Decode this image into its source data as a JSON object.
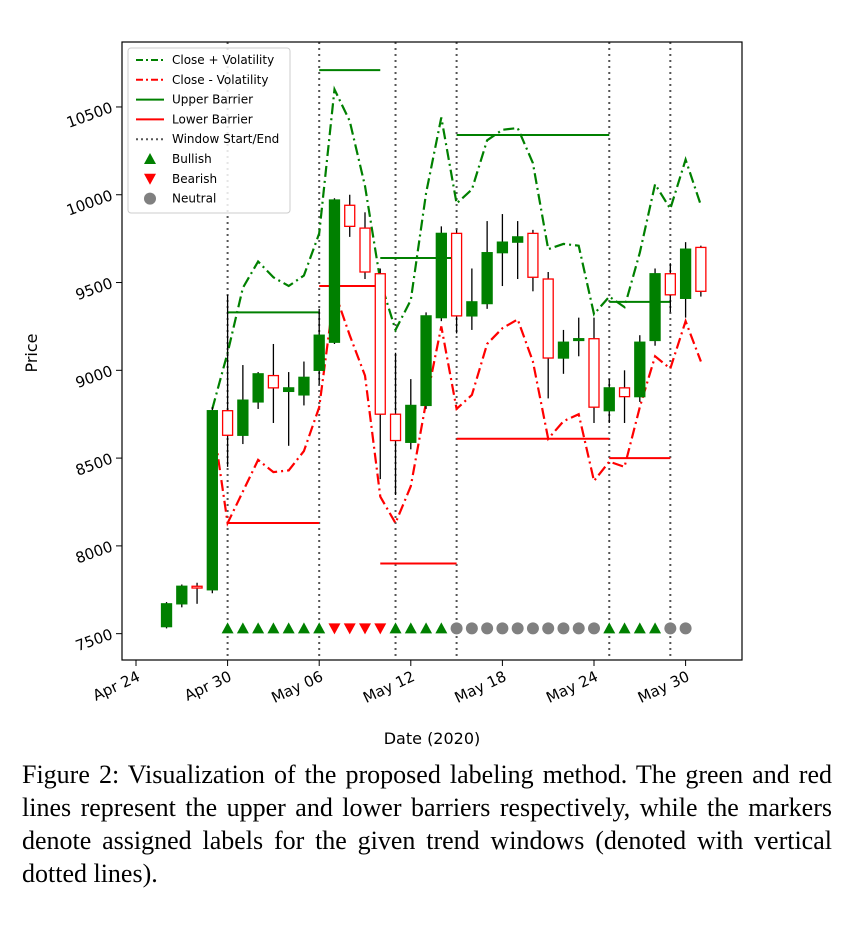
{
  "chart_data": {
    "type": "candlestick",
    "xlabel": "Date (2020)",
    "ylabel": "Price",
    "x_ticks": [
      "Apr 24",
      "Apr 30",
      "May 06",
      "May 12",
      "May 18",
      "May 24",
      "May 30"
    ],
    "y_ticks": [
      7500,
      8000,
      8500,
      9000,
      9500,
      10000,
      10500
    ],
    "ylim": [
      7350,
      10870
    ],
    "legend": {
      "placement": "top-left",
      "entries": [
        {
          "label": "Close + Volatility",
          "style": "dashdot",
          "color": "#008000"
        },
        {
          "label": "Close - Volatility",
          "style": "dashdot",
          "color": "#ff0000"
        },
        {
          "label": "Upper Barrier",
          "style": "solid",
          "color": "#008000"
        },
        {
          "label": "Lower Barrier",
          "style": "solid",
          "color": "#ff0000"
        },
        {
          "label": "Window Start/End",
          "style": "dotted",
          "color": "#555555"
        },
        {
          "label": "Bullish",
          "marker": "triangle-up",
          "color": "#008000"
        },
        {
          "label": "Bearish",
          "marker": "triangle-down",
          "color": "#ff0000"
        },
        {
          "label": "Neutral",
          "marker": "circle",
          "color": "#808080"
        }
      ]
    },
    "candles": [
      {
        "date": "2020-04-26",
        "open": 7540,
        "close": 7670,
        "high": 7680,
        "low": 7530
      },
      {
        "date": "2020-04-27",
        "open": 7670,
        "close": 7770,
        "high": 7780,
        "low": 7650
      },
      {
        "date": "2020-04-28",
        "open": 7770,
        "close": 7760,
        "high": 7790,
        "low": 7670
      },
      {
        "date": "2020-04-29",
        "open": 7750,
        "close": 8770,
        "high": 8790,
        "low": 7730
      },
      {
        "date": "2020-04-30",
        "open": 8770,
        "close": 8630,
        "high": 9430,
        "low": 8450
      },
      {
        "date": "2020-05-01",
        "open": 8630,
        "close": 8830,
        "high": 9030,
        "low": 8580
      },
      {
        "date": "2020-05-02",
        "open": 8820,
        "close": 8980,
        "high": 8990,
        "low": 8780
      },
      {
        "date": "2020-05-03",
        "open": 8970,
        "close": 8900,
        "high": 9150,
        "low": 8700
      },
      {
        "date": "2020-05-04",
        "open": 8880,
        "close": 8900,
        "high": 8990,
        "low": 8570
      },
      {
        "date": "2020-05-05",
        "open": 8860,
        "close": 8960,
        "high": 9050,
        "low": 8800
      },
      {
        "date": "2020-05-06",
        "open": 9000,
        "close": 9200,
        "high": 9350,
        "low": 8920
      },
      {
        "date": "2020-05-07",
        "open": 9160,
        "close": 9970,
        "high": 9980,
        "low": 9150
      },
      {
        "date": "2020-05-08",
        "open": 9940,
        "close": 9820,
        "high": 10000,
        "low": 9760
      },
      {
        "date": "2020-05-09",
        "open": 9810,
        "close": 9560,
        "high": 9900,
        "low": 9520
      },
      {
        "date": "2020-05-10",
        "open": 9550,
        "close": 8750,
        "high": 9580,
        "low": 8380
      },
      {
        "date": "2020-05-11",
        "open": 8750,
        "close": 8600,
        "high": 9100,
        "low": 8290
      },
      {
        "date": "2020-05-12",
        "open": 8590,
        "close": 8800,
        "high": 8950,
        "low": 8550
      },
      {
        "date": "2020-05-13",
        "open": 8800,
        "close": 9310,
        "high": 9330,
        "low": 8780
      },
      {
        "date": "2020-05-14",
        "open": 9300,
        "close": 9780,
        "high": 9820,
        "low": 9280
      },
      {
        "date": "2020-05-15",
        "open": 9780,
        "close": 9310,
        "high": 9800,
        "low": 9210
      },
      {
        "date": "2020-05-16",
        "open": 9310,
        "close": 9390,
        "high": 9580,
        "low": 9230
      },
      {
        "date": "2020-05-17",
        "open": 9380,
        "close": 9670,
        "high": 9850,
        "low": 9350
      },
      {
        "date": "2020-05-18",
        "open": 9670,
        "close": 9730,
        "high": 9890,
        "low": 9480
      },
      {
        "date": "2020-05-19",
        "open": 9730,
        "close": 9760,
        "high": 9850,
        "low": 9520
      },
      {
        "date": "2020-05-20",
        "open": 9780,
        "close": 9530,
        "high": 9800,
        "low": 9450
      },
      {
        "date": "2020-05-21",
        "open": 9520,
        "close": 9070,
        "high": 9560,
        "low": 8840
      },
      {
        "date": "2020-05-22",
        "open": 9070,
        "close": 9160,
        "high": 9230,
        "low": 8980
      },
      {
        "date": "2020-05-23",
        "open": 9170,
        "close": 9180,
        "high": 9300,
        "low": 9080
      },
      {
        "date": "2020-05-24",
        "open": 9180,
        "close": 8790,
        "high": 9300,
        "low": 8700
      },
      {
        "date": "2020-05-25",
        "open": 8770,
        "close": 8900,
        "high": 8950,
        "low": 8700
      },
      {
        "date": "2020-05-26",
        "open": 8900,
        "close": 8850,
        "high": 9000,
        "low": 8700
      },
      {
        "date": "2020-05-27",
        "open": 8850,
        "close": 9160,
        "high": 9200,
        "low": 8820
      },
      {
        "date": "2020-05-28",
        "open": 9170,
        "close": 9550,
        "high": 9580,
        "low": 9140
      },
      {
        "date": "2020-05-29",
        "open": 9550,
        "close": 9430,
        "high": 9610,
        "low": 9330
      },
      {
        "date": "2020-05-30",
        "open": 9410,
        "close": 9690,
        "high": 9730,
        "low": 9300
      },
      {
        "date": "2020-05-31",
        "open": 9700,
        "close": 9450,
        "high": 9710,
        "low": 9420
      }
    ],
    "close_plus_volatility": [
      [
        "2020-04-29",
        8780
      ],
      [
        "2020-04-30",
        9100
      ],
      [
        "2020-05-01",
        9470
      ],
      [
        "2020-05-02",
        9620
      ],
      [
        "2020-05-03",
        9530
      ],
      [
        "2020-05-04",
        9480
      ],
      [
        "2020-05-05",
        9540
      ],
      [
        "2020-05-06",
        9780
      ],
      [
        "2020-05-07",
        10600
      ],
      [
        "2020-05-08",
        10420
      ],
      [
        "2020-05-09",
        10050
      ],
      [
        "2020-05-10",
        9510
      ],
      [
        "2020-05-11",
        9230
      ],
      [
        "2020-05-12",
        9400
      ],
      [
        "2020-05-13",
        10010
      ],
      [
        "2020-05-14",
        10440
      ],
      [
        "2020-05-15",
        9950
      ],
      [
        "2020-05-16",
        10030
      ],
      [
        "2020-05-17",
        10310
      ],
      [
        "2020-05-18",
        10370
      ],
      [
        "2020-05-19",
        10380
      ],
      [
        "2020-05-20",
        10180
      ],
      [
        "2020-05-21",
        9690
      ],
      [
        "2020-05-22",
        9720
      ],
      [
        "2020-05-23",
        9710
      ],
      [
        "2020-05-24",
        9320
      ],
      [
        "2020-05-25",
        9420
      ],
      [
        "2020-05-26",
        9360
      ],
      [
        "2020-05-27",
        9670
      ],
      [
        "2020-05-28",
        10060
      ],
      [
        "2020-05-29",
        9920
      ],
      [
        "2020-05-30",
        10200
      ],
      [
        "2020-05-31",
        9940
      ]
    ],
    "close_minus_volatility": [
      [
        "2020-04-29",
        8730
      ],
      [
        "2020-04-30",
        8130
      ],
      [
        "2020-05-01",
        8310
      ],
      [
        "2020-05-02",
        8490
      ],
      [
        "2020-05-03",
        8420
      ],
      [
        "2020-05-04",
        8430
      ],
      [
        "2020-05-05",
        8540
      ],
      [
        "2020-05-06",
        8790
      ],
      [
        "2020-05-07",
        9450
      ],
      [
        "2020-05-08",
        9200
      ],
      [
        "2020-05-09",
        8970
      ],
      [
        "2020-05-10",
        8280
      ],
      [
        "2020-05-11",
        8130
      ],
      [
        "2020-05-12",
        8340
      ],
      [
        "2020-05-13",
        8820
      ],
      [
        "2020-05-14",
        9250
      ],
      [
        "2020-05-15",
        8780
      ],
      [
        "2020-05-16",
        8860
      ],
      [
        "2020-05-17",
        9150
      ],
      [
        "2020-05-18",
        9240
      ],
      [
        "2020-05-19",
        9290
      ],
      [
        "2020-05-20",
        9050
      ],
      [
        "2020-05-21",
        8610
      ],
      [
        "2020-05-22",
        8710
      ],
      [
        "2020-05-23",
        8750
      ],
      [
        "2020-05-24",
        8370
      ],
      [
        "2020-05-25",
        8480
      ],
      [
        "2020-05-26",
        8450
      ],
      [
        "2020-05-27",
        8790
      ],
      [
        "2020-05-28",
        9080
      ],
      [
        "2020-05-29",
        9010
      ],
      [
        "2020-05-30",
        9280
      ],
      [
        "2020-05-31",
        9050
      ]
    ],
    "window_boundaries": [
      "2020-04-30",
      "2020-05-06",
      "2020-05-11",
      "2020-05-15",
      "2020-05-25",
      "2020-05-29"
    ],
    "upper_barriers": [
      {
        "start": "2020-04-30",
        "end": "2020-05-06",
        "value": 9330
      },
      {
        "start": "2020-05-06",
        "end": "2020-05-10",
        "value": 10710
      },
      {
        "start": "2020-05-10",
        "end": "2020-05-15",
        "value": 9640
      },
      {
        "start": "2020-05-15",
        "end": "2020-05-25",
        "value": 10340
      },
      {
        "start": "2020-05-25",
        "end": "2020-05-29",
        "value": 9390
      }
    ],
    "lower_barriers": [
      {
        "start": "2020-04-30",
        "end": "2020-05-06",
        "value": 8130
      },
      {
        "start": "2020-05-06",
        "end": "2020-05-10",
        "value": 9480
      },
      {
        "start": "2020-05-10",
        "end": "2020-05-15",
        "value": 7900
      },
      {
        "start": "2020-05-15",
        "end": "2020-05-25",
        "value": 8610
      },
      {
        "start": "2020-05-25",
        "end": "2020-05-29",
        "value": 8500
      }
    ],
    "label_marker_y": 7530,
    "labels": [
      {
        "date": "2020-04-30",
        "label": "Bullish"
      },
      {
        "date": "2020-05-01",
        "label": "Bullish"
      },
      {
        "date": "2020-05-02",
        "label": "Bullish"
      },
      {
        "date": "2020-05-03",
        "label": "Bullish"
      },
      {
        "date": "2020-05-04",
        "label": "Bullish"
      },
      {
        "date": "2020-05-05",
        "label": "Bullish"
      },
      {
        "date": "2020-05-06",
        "label": "Bullish"
      },
      {
        "date": "2020-05-07",
        "label": "Bearish"
      },
      {
        "date": "2020-05-08",
        "label": "Bearish"
      },
      {
        "date": "2020-05-09",
        "label": "Bearish"
      },
      {
        "date": "2020-05-10",
        "label": "Bearish"
      },
      {
        "date": "2020-05-11",
        "label": "Bullish"
      },
      {
        "date": "2020-05-12",
        "label": "Bullish"
      },
      {
        "date": "2020-05-13",
        "label": "Bullish"
      },
      {
        "date": "2020-05-14",
        "label": "Bullish"
      },
      {
        "date": "2020-05-15",
        "label": "Neutral"
      },
      {
        "date": "2020-05-16",
        "label": "Neutral"
      },
      {
        "date": "2020-05-17",
        "label": "Neutral"
      },
      {
        "date": "2020-05-18",
        "label": "Neutral"
      },
      {
        "date": "2020-05-19",
        "label": "Neutral"
      },
      {
        "date": "2020-05-20",
        "label": "Neutral"
      },
      {
        "date": "2020-05-21",
        "label": "Neutral"
      },
      {
        "date": "2020-05-22",
        "label": "Neutral"
      },
      {
        "date": "2020-05-23",
        "label": "Neutral"
      },
      {
        "date": "2020-05-24",
        "label": "Neutral"
      },
      {
        "date": "2020-05-25",
        "label": "Bullish"
      },
      {
        "date": "2020-05-26",
        "label": "Bullish"
      },
      {
        "date": "2020-05-27",
        "label": "Bullish"
      },
      {
        "date": "2020-05-28",
        "label": "Bullish"
      },
      {
        "date": "2020-05-29",
        "label": "Neutral"
      },
      {
        "date": "2020-05-30",
        "label": "Neutral"
      }
    ],
    "colors": {
      "bullish": "#008000",
      "bearish": "#ff0000",
      "neutral": "#808080",
      "window": "#555555"
    }
  },
  "caption": "Figure 2: Visualization of the proposed labeling method. The green and red lines represent the upper and lower barriers respectively, while the markers denote assigned labels for the given trend windows (denoted with vertical dotted lines)."
}
